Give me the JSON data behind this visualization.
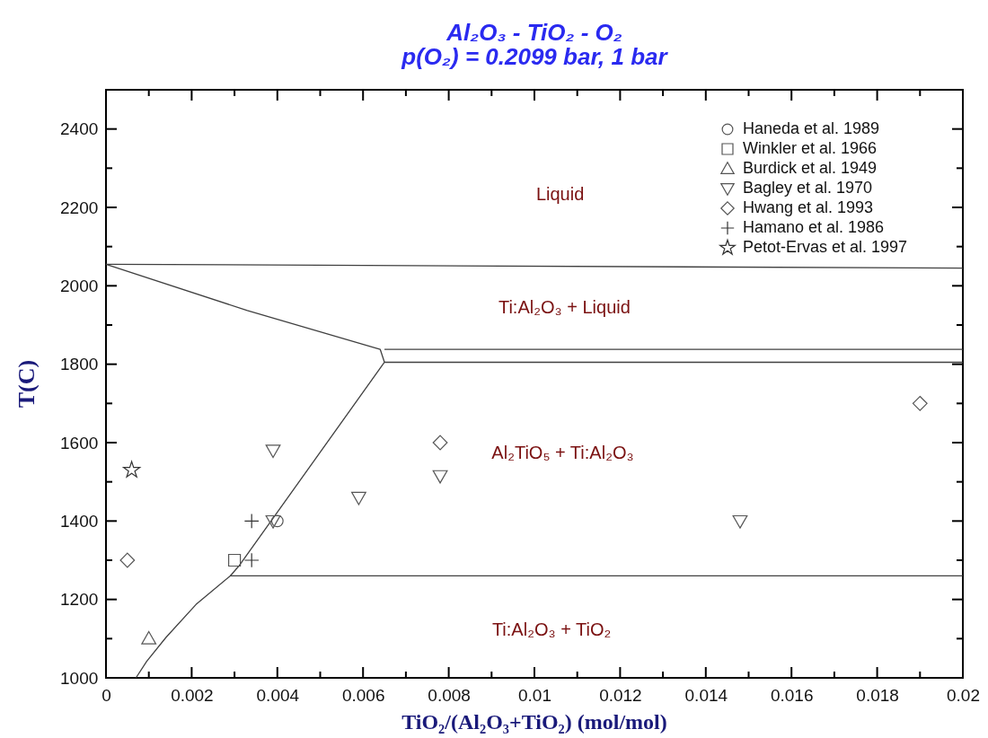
{
  "chart_data": {
    "type": "scatter",
    "title": "Al₂O₃ - TiO₂ - O₂",
    "subtitle": "p(O₂) = 0.2099 bar, 1 bar",
    "xlabel": "TiO₂/(Al₂O₃+TiO₂) (mol/mol)",
    "ylabel": "T(C)",
    "xlim": [
      0,
      0.02
    ],
    "ylim": [
      1000,
      2500
    ],
    "xticks": [
      0,
      {
        "value": 0.001,
        "label": null
      },
      0.002,
      {
        "value": 0.003,
        "label": null
      },
      0.004,
      {
        "value": 0.005,
        "label": null
      },
      0.006,
      {
        "value": 0.007,
        "label": null
      },
      0.008,
      {
        "value": 0.009,
        "label": null
      },
      0.01,
      {
        "value": 0.011,
        "label": null
      },
      0.012,
      {
        "value": 0.013,
        "label": null
      },
      0.014,
      {
        "value": 0.015,
        "label": null
      },
      0.016,
      {
        "value": 0.017,
        "label": null
      },
      0.018,
      {
        "value": 0.019,
        "label": null
      },
      0.02
    ],
    "yticks": [
      1000,
      {
        "value": 1100,
        "label": null
      },
      1200,
      {
        "value": 1300,
        "label": null
      },
      1400,
      {
        "value": 1500,
        "label": null
      },
      1600,
      {
        "value": 1700,
        "label": null
      },
      1800,
      {
        "value": 1900,
        "label": null
      },
      2000,
      {
        "value": 2100,
        "label": null
      },
      2200,
      {
        "value": 2300,
        "label": null
      },
      2400
    ],
    "grid": false,
    "legend": "top right",
    "series": [
      {
        "type": "line",
        "color": "#404040",
        "marker": "none",
        "x": [
          0,
          0.02
        ],
        "values": [
          2055,
          2045
        ]
      },
      {
        "type": "line",
        "color": "#404040",
        "marker": "none",
        "x": [
          0,
          0.0033,
          0.0064,
          0.0065,
          0.0031,
          0.0029,
          0.0021,
          0.0014,
          0.00095,
          0.0007
        ],
        "values": [
          2055,
          1937,
          1838,
          1805,
          1285,
          1260,
          1187,
          1103,
          1042,
          1000
        ]
      },
      {
        "type": "line",
        "color": "#404040",
        "marker": "none",
        "x": [
          0.0065,
          0.02
        ],
        "values": [
          1838,
          1838
        ]
      },
      {
        "type": "line",
        "color": "#404040",
        "marker": "none",
        "x": [
          0.0065,
          0.02
        ],
        "values": [
          1805,
          1805
        ]
      },
      {
        "type": "line",
        "color": "#404040",
        "marker": "none",
        "x": [
          0.0029,
          0.02
        ],
        "values": [
          1260,
          1260
        ]
      },
      {
        "name": "Haneda et al. 1989",
        "color": "#555555",
        "marker": "circle",
        "x": [
          0.004
        ],
        "values": [
          1400
        ]
      },
      {
        "name": "Winkler et al. 1966",
        "color": "#555555",
        "marker": "square",
        "x": [
          0.003
        ],
        "values": [
          1300
        ]
      },
      {
        "name": "Burdick et al. 1949",
        "color": "#555555",
        "marker": "triangle",
        "x": [
          0.001
        ],
        "values": [
          1100
        ]
      },
      {
        "name": "Bagley et al. 1970",
        "color": "#555555",
        "marker": "triangle-down",
        "x": [
          0.0039,
          0.0039,
          0.0059,
          0.0078,
          0.0148
        ],
        "values": [
          1580,
          1400,
          1460,
          1515,
          1400
        ]
      },
      {
        "name": "Hwang et al. 1993",
        "color": "#555555",
        "marker": "diamond",
        "x": [
          0.0005,
          0.0078,
          0.019
        ],
        "values": [
          1300,
          1600,
          1700
        ]
      },
      {
        "name": "Hamano et al. 1986",
        "color": "#333333",
        "marker": "cross",
        "x": [
          0.0034,
          0.0034
        ],
        "values": [
          1400,
          1300
        ]
      },
      {
        "name": "Petot-Ervas et al. 1997",
        "color": "#333333",
        "marker": "star",
        "x": [
          0.0006
        ],
        "values": [
          1530
        ]
      }
    ],
    "annotations": [
      "Liquid",
      "Ti:Al₂O₃  + Liquid",
      "Al₂TiO₅ + Ti:Al₂O₃",
      "Ti:Al₂O₃  + TiO₂"
    ]
  }
}
